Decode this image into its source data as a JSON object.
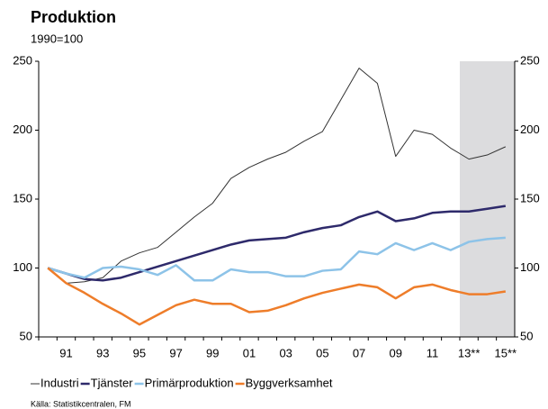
{
  "chart_data": {
    "type": "line",
    "title": "Produktion",
    "subtitle": "1990=100",
    "source": "Källa: Statistikcentralen, FM",
    "categories": [
      null,
      "91",
      null,
      "93",
      null,
      "95",
      null,
      "97",
      null,
      "99",
      null,
      "01",
      null,
      "03",
      null,
      "05",
      null,
      "07",
      null,
      "09",
      null,
      "11",
      null,
      "13**",
      null,
      "15**"
    ],
    "series": [
      {
        "name": "Industri",
        "color": "#333333",
        "values": [
          100,
          89,
          90,
          93,
          105,
          111,
          115,
          126,
          137,
          147,
          165,
          173,
          179,
          184,
          192,
          199,
          222,
          245,
          234,
          181,
          200,
          197,
          187,
          179,
          182,
          188
        ]
      },
      {
        "name": "Tjänster",
        "color": "#2e2a6b",
        "values": [
          100,
          96,
          92,
          91,
          93,
          97,
          101,
          105,
          109,
          113,
          117,
          120,
          121,
          122,
          126,
          129,
          131,
          137,
          141,
          134,
          136,
          140,
          141,
          141,
          143,
          145
        ]
      },
      {
        "name": "Primärproduktion",
        "color": "#8dc3e8",
        "values": [
          100,
          96,
          93,
          100,
          101,
          99,
          95,
          102,
          91,
          91,
          99,
          97,
          97,
          94,
          94,
          98,
          99,
          112,
          110,
          118,
          113,
          118,
          113,
          119,
          121,
          122
        ]
      },
      {
        "name": "Byggverksamhet",
        "color": "#ee7d2a",
        "values": [
          100,
          89,
          82,
          74,
          67,
          59,
          66,
          73,
          77,
          74,
          74,
          68,
          69,
          73,
          78,
          82,
          85,
          88,
          86,
          78,
          86,
          88,
          84,
          81,
          81,
          83
        ]
      }
    ],
    "forecast_from_index": 23,
    "ylim": [
      50,
      250
    ],
    "yticks": [
      50,
      100,
      150,
      200,
      250
    ],
    "grid": false
  }
}
